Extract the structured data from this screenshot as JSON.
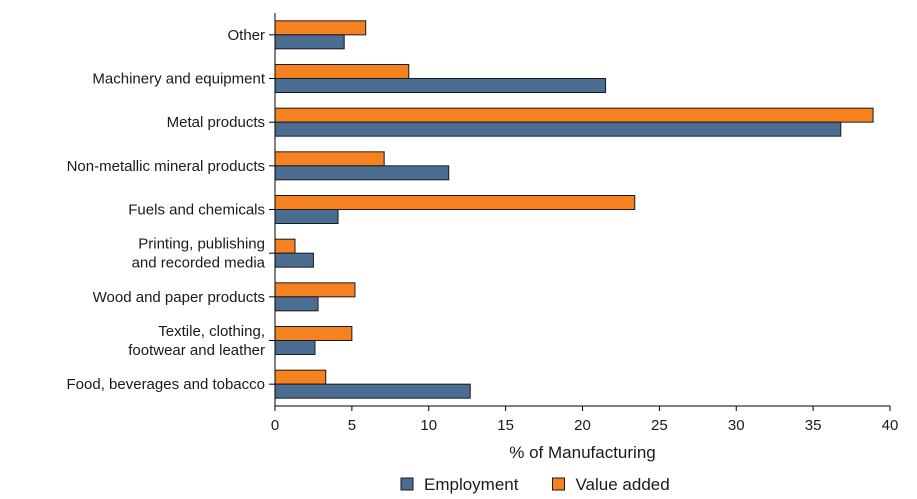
{
  "chart_data": {
    "type": "bar",
    "orientation": "horizontal",
    "categories": [
      [
        "Other"
      ],
      [
        "Machinery and equipment"
      ],
      [
        "Metal products"
      ],
      [
        "Non-metallic mineral products"
      ],
      [
        "Fuels and chemicals"
      ],
      [
        "Printing, publishing",
        "and recorded media"
      ],
      [
        "Wood and paper products"
      ],
      [
        "Textile, clothing,",
        "footwear and leather"
      ],
      [
        "Food, beverages and tobacco"
      ]
    ],
    "series": [
      {
        "name": "Value added",
        "color": "#f58220",
        "values": [
          5.9,
          8.7,
          38.9,
          7.1,
          23.4,
          1.3,
          5.2,
          5.0,
          3.3
        ]
      },
      {
        "name": "Employment",
        "color": "#4a6d91",
        "values": [
          4.5,
          21.5,
          36.8,
          11.3,
          4.1,
          2.5,
          2.8,
          2.6,
          12.7
        ]
      }
    ],
    "xlabel": "% of Manufacturing",
    "xlim": [
      0,
      40
    ],
    "xticks": [
      0,
      5,
      10,
      15,
      20,
      25,
      30,
      35,
      40
    ],
    "grid": false,
    "legend": {
      "position": "bottom",
      "order": [
        "Employment",
        "Value added"
      ]
    }
  }
}
